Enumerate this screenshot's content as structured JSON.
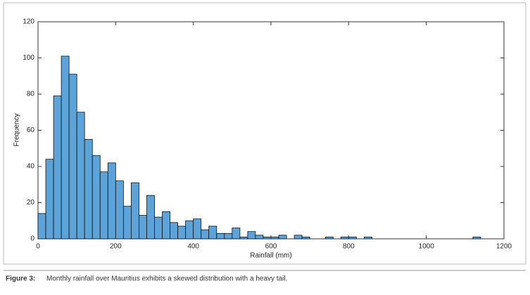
{
  "chart_data": {
    "type": "histogram",
    "xlabel": "Rainfall (mm)",
    "ylabel": "Frequency",
    "bins": [
      0,
      20,
      40,
      60,
      80,
      100,
      120,
      140,
      160,
      180,
      200,
      220,
      240,
      260,
      280,
      300,
      320,
      340,
      360,
      380,
      400,
      420,
      440,
      460,
      480,
      500,
      520,
      540,
      560,
      580,
      600,
      620,
      640,
      660,
      680,
      700,
      720,
      740,
      760,
      780,
      800,
      820,
      840,
      860,
      880,
      900,
      920,
      940,
      960,
      980,
      1000,
      1020,
      1040,
      1060,
      1080,
      1100,
      1120,
      1140,
      1160,
      1180,
      1200
    ],
    "values": [
      14,
      44,
      79,
      101,
      91,
      70,
      55,
      46,
      37,
      42,
      32,
      18,
      31,
      13,
      24,
      12,
      15,
      9,
      7,
      10,
      11,
      5,
      7,
      3,
      3,
      6,
      1,
      4,
      2,
      1,
      1,
      2,
      0,
      2,
      1,
      0,
      0,
      1,
      0,
      1,
      1,
      0,
      1,
      0,
      0,
      0,
      0,
      0,
      0,
      0,
      0,
      0,
      0,
      0,
      0,
      0,
      1,
      0,
      0,
      0
    ],
    "color": "#5ba3d9",
    "xlim": [
      0,
      1200
    ],
    "xticks": [
      0,
      200,
      400,
      600,
      800,
      1000,
      1200
    ],
    "ylim": [
      0,
      120
    ],
    "yticks": [
      0,
      20,
      40,
      60,
      80,
      100,
      120
    ]
  },
  "caption": {
    "label": "Figure 3:",
    "text": "Monthly rainfall over Mauritius exhibits a skewed distribution with a heavy tail."
  }
}
